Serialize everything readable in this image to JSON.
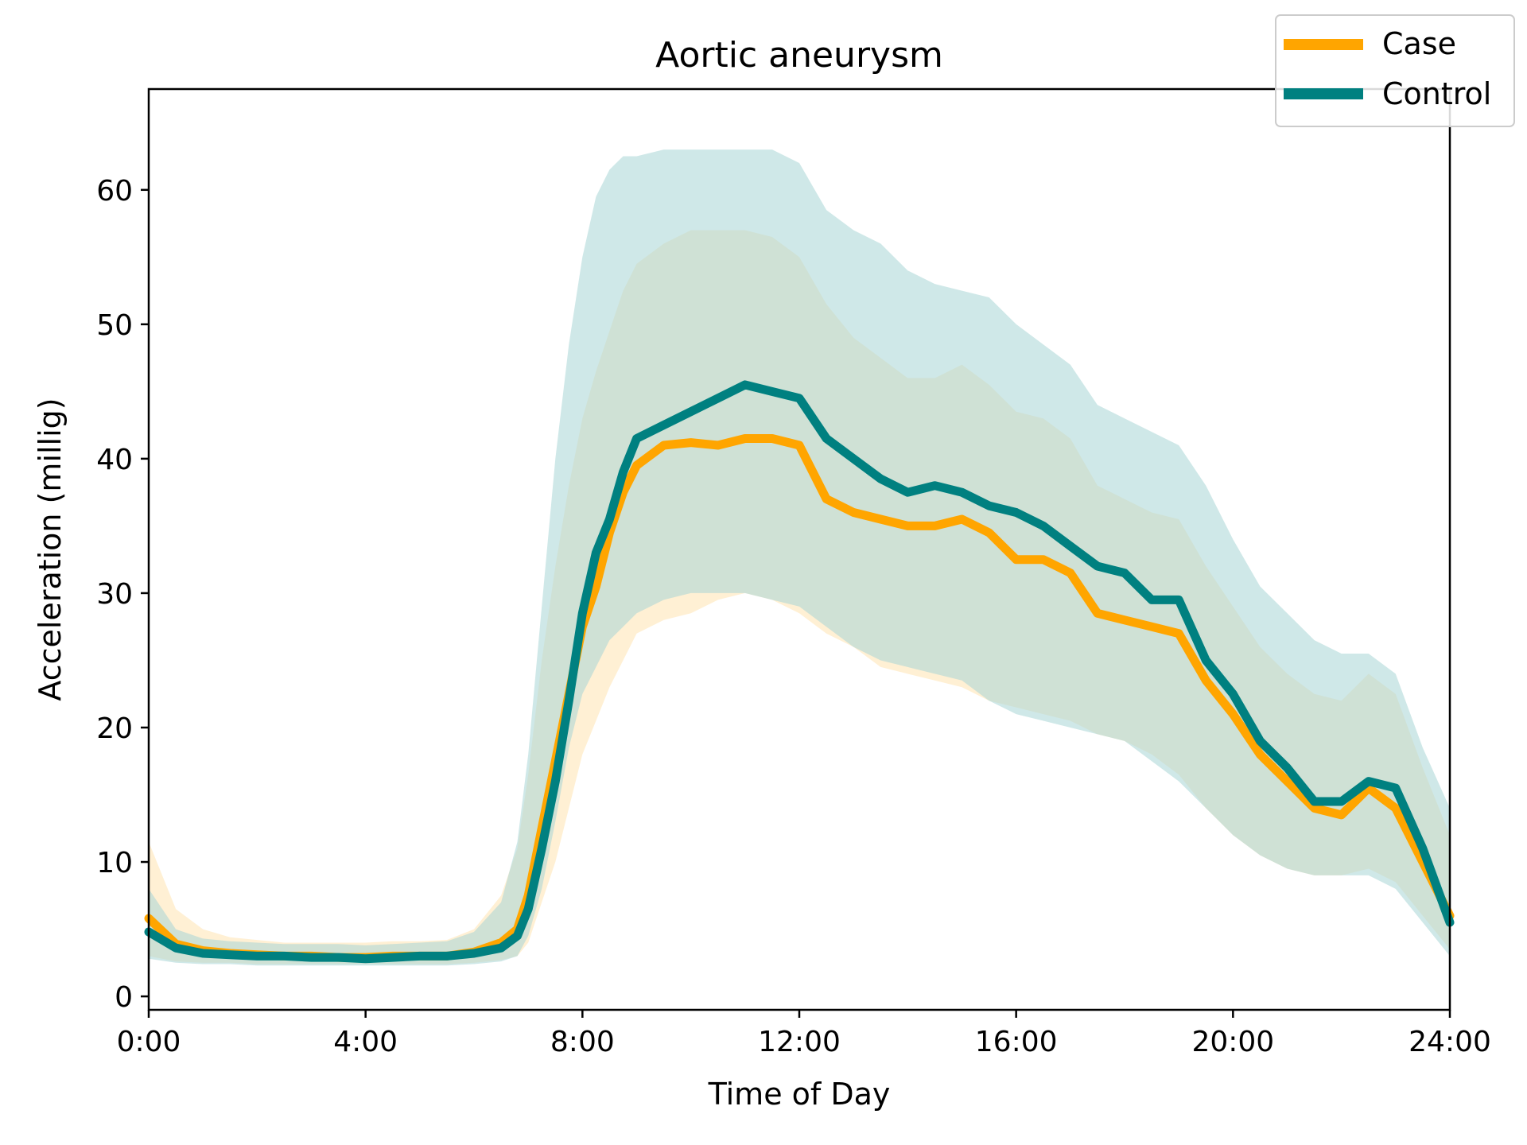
{
  "chart_data": {
    "type": "line",
    "title": "Aortic aneurysm",
    "xlabel": "Time of Day",
    "ylabel": "Acceleration (millig)",
    "xlim": [
      0,
      24
    ],
    "ylim": [
      -1,
      67.5
    ],
    "grid": false,
    "legend_position": "top-right",
    "x_ticks": [
      {
        "value": 0,
        "label": "0:00"
      },
      {
        "value": 4,
        "label": "4:00"
      },
      {
        "value": 8,
        "label": "8:00"
      },
      {
        "value": 12,
        "label": "12:00"
      },
      {
        "value": 16,
        "label": "16:00"
      },
      {
        "value": 20,
        "label": "20:00"
      },
      {
        "value": 24,
        "label": "24:00"
      }
    ],
    "y_ticks": [
      {
        "value": 0,
        "label": "0"
      },
      {
        "value": 10,
        "label": "10"
      },
      {
        "value": 20,
        "label": "20"
      },
      {
        "value": 30,
        "label": "30"
      },
      {
        "value": 40,
        "label": "40"
      },
      {
        "value": 50,
        "label": "50"
      },
      {
        "value": 60,
        "label": "60"
      }
    ],
    "x": [
      0,
      0.5,
      1,
      1.5,
      2,
      2.5,
      3,
      3.5,
      4,
      4.5,
      5,
      5.5,
      6,
      6.5,
      6.8,
      7,
      7.25,
      7.5,
      7.75,
      8,
      8.25,
      8.5,
      8.75,
      9,
      9.5,
      10,
      10.5,
      11,
      11.5,
      12,
      12.5,
      13,
      13.5,
      14,
      14.5,
      15,
      15.5,
      16,
      16.5,
      17,
      17.5,
      18,
      18.5,
      19,
      19.5,
      20,
      20.5,
      21,
      21.5,
      22,
      22.5,
      23,
      23.5,
      24
    ],
    "series": [
      {
        "name": "Case",
        "color": "#FFA500",
        "band_color": "#FFE4B0",
        "mean": [
          5.8,
          3.9,
          3.4,
          3.2,
          3.1,
          3.0,
          3.0,
          2.9,
          2.9,
          3.0,
          3.0,
          3.0,
          3.3,
          4.0,
          5.0,
          7.5,
          12.5,
          17.5,
          22.5,
          27.5,
          30.5,
          34.5,
          37.5,
          39.5,
          41.0,
          41.2,
          41.0,
          41.5,
          41.5,
          41.0,
          37.0,
          36.0,
          35.5,
          35.0,
          35.0,
          35.5,
          34.5,
          32.5,
          32.5,
          31.5,
          28.5,
          28.0,
          27.5,
          27.0,
          23.5,
          21.0,
          18.0,
          16.0,
          14.0,
          13.5,
          15.5,
          14.0,
          10.0,
          6.0
        ],
        "lower": [
          3.0,
          2.6,
          2.5,
          2.5,
          2.4,
          2.4,
          2.4,
          2.4,
          2.4,
          2.4,
          2.4,
          2.4,
          2.5,
          2.7,
          3.0,
          4.0,
          7.0,
          10.0,
          14.0,
          18.0,
          20.5,
          23.0,
          25.0,
          27.0,
          28.0,
          28.5,
          29.5,
          30.0,
          29.5,
          28.5,
          27.0,
          26.0,
          24.5,
          24.0,
          23.5,
          23.0,
          22.0,
          21.5,
          21.0,
          20.5,
          19.5,
          19.0,
          18.0,
          16.5,
          14.0,
          12.0,
          10.5,
          9.5,
          9.0,
          9.0,
          9.5,
          8.5,
          6.0,
          3.5
        ],
        "upper": [
          11.5,
          6.5,
          5.0,
          4.4,
          4.2,
          4.0,
          4.0,
          4.0,
          4.0,
          4.1,
          4.1,
          4.2,
          5.0,
          7.5,
          11.0,
          16.5,
          25.0,
          32.0,
          38.0,
          43.0,
          46.5,
          49.5,
          52.5,
          54.5,
          56.0,
          57.0,
          57.0,
          57.0,
          56.5,
          55.0,
          51.5,
          49.0,
          47.5,
          46.0,
          46.0,
          47.0,
          45.5,
          43.5,
          43.0,
          41.5,
          38.0,
          37.0,
          36.0,
          35.5,
          32.0,
          29.0,
          26.0,
          24.0,
          22.5,
          22.0,
          24.0,
          22.5,
          17.0,
          12.0
        ]
      },
      {
        "name": "Control",
        "color": "#008080",
        "band_color": "#A8D5D5",
        "mean": [
          4.8,
          3.6,
          3.2,
          3.1,
          3.0,
          3.0,
          2.9,
          2.9,
          2.8,
          2.9,
          3.0,
          3.0,
          3.2,
          3.6,
          4.5,
          6.5,
          11.0,
          16.0,
          22.0,
          28.5,
          33.0,
          35.5,
          39.0,
          41.5,
          42.5,
          43.5,
          44.5,
          45.5,
          45.0,
          44.5,
          41.5,
          40.0,
          38.5,
          37.5,
          38.0,
          37.5,
          36.5,
          36.0,
          35.0,
          33.5,
          32.0,
          31.5,
          29.5,
          29.5,
          25.0,
          22.5,
          19.0,
          17.0,
          14.5,
          14.5,
          16.0,
          15.5,
          11.0,
          5.5
        ],
        "lower": [
          2.8,
          2.5,
          2.4,
          2.4,
          2.3,
          2.3,
          2.3,
          2.3,
          2.3,
          2.3,
          2.3,
          2.3,
          2.4,
          2.6,
          3.0,
          4.5,
          8.0,
          13.0,
          18.5,
          22.5,
          24.5,
          26.5,
          27.5,
          28.5,
          29.5,
          30.0,
          30.0,
          30.0,
          29.5,
          29.0,
          27.5,
          26.0,
          25.0,
          24.5,
          24.0,
          23.5,
          22.0,
          21.0,
          20.5,
          20.0,
          19.5,
          19.0,
          17.5,
          16.0,
          14.0,
          12.0,
          10.5,
          9.5,
          9.0,
          9.0,
          9.0,
          8.0,
          5.5,
          3.0
        ],
        "upper": [
          8.0,
          5.0,
          4.3,
          4.1,
          4.0,
          3.9,
          3.9,
          3.9,
          3.8,
          3.9,
          4.0,
          4.1,
          4.8,
          7.0,
          11.5,
          18.0,
          29.0,
          40.0,
          48.5,
          55.0,
          59.5,
          61.5,
          62.5,
          62.5,
          63.0,
          63.0,
          63.0,
          63.0,
          63.0,
          62.0,
          58.5,
          57.0,
          56.0,
          54.0,
          53.0,
          52.5,
          52.0,
          50.0,
          48.5,
          47.0,
          44.0,
          43.0,
          42.0,
          41.0,
          38.0,
          34.0,
          30.5,
          28.5,
          26.5,
          25.5,
          25.5,
          24.0,
          18.5,
          14.0
        ]
      }
    ]
  }
}
